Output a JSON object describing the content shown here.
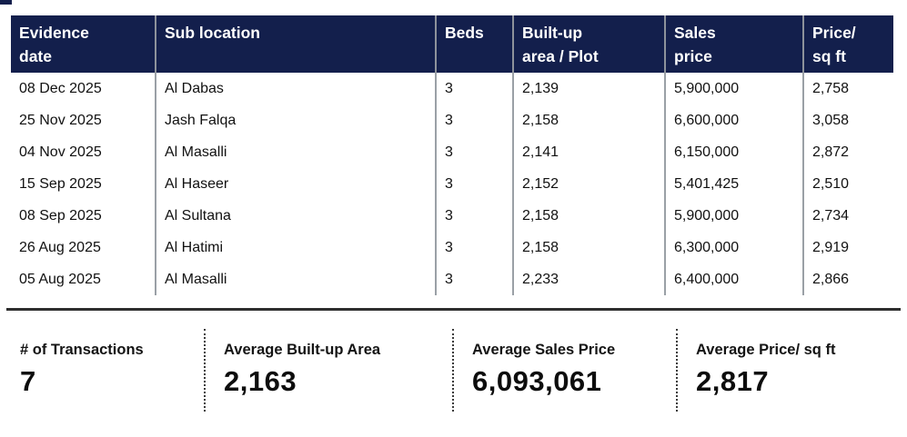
{
  "colors": {
    "header_bg": "#131f4c",
    "header_text": "#ffffff",
    "column_separator": "#9aa0a6",
    "divider_line": "#2e2e2e",
    "body_text": "#111111"
  },
  "table": {
    "headers": [
      "Evidence\ndate",
      "Sub location",
      "Beds",
      "Built-up\narea / Plot",
      "Sales\nprice",
      "Price/\nsq ft"
    ],
    "rows": [
      [
        "08 Dec 2025",
        "Al Dabas",
        "3",
        "2,139",
        "5,900,000",
        "2,758"
      ],
      [
        "25 Nov 2025",
        "Jash Falqa",
        "3",
        "2,158",
        "6,600,000",
        "3,058"
      ],
      [
        "04 Nov 2025",
        "Al Masalli",
        "3",
        "2,141",
        "6,150,000",
        "2,872"
      ],
      [
        "15 Sep 2025",
        "Al Haseer",
        "3",
        "2,152",
        "5,401,425",
        "2,510"
      ],
      [
        "08 Sep 2025",
        "Al Sultana",
        "3",
        "2,158",
        "5,900,000",
        "2,734"
      ],
      [
        "26 Aug 2025",
        "Al Hatimi",
        "3",
        "2,158",
        "6,300,000",
        "2,919"
      ],
      [
        "05 Aug 2025",
        "Al Masalli",
        "3",
        "2,233",
        "6,400,000",
        "2,866"
      ]
    ]
  },
  "summary": {
    "metrics": [
      {
        "label": "# of Transactions",
        "value": "7"
      },
      {
        "label": "Average Built-up Area",
        "value": "2,163"
      },
      {
        "label": "Average Sales Price",
        "value": "6,093,061"
      },
      {
        "label": "Average Price/ sq ft",
        "value": "2,817"
      }
    ]
  }
}
